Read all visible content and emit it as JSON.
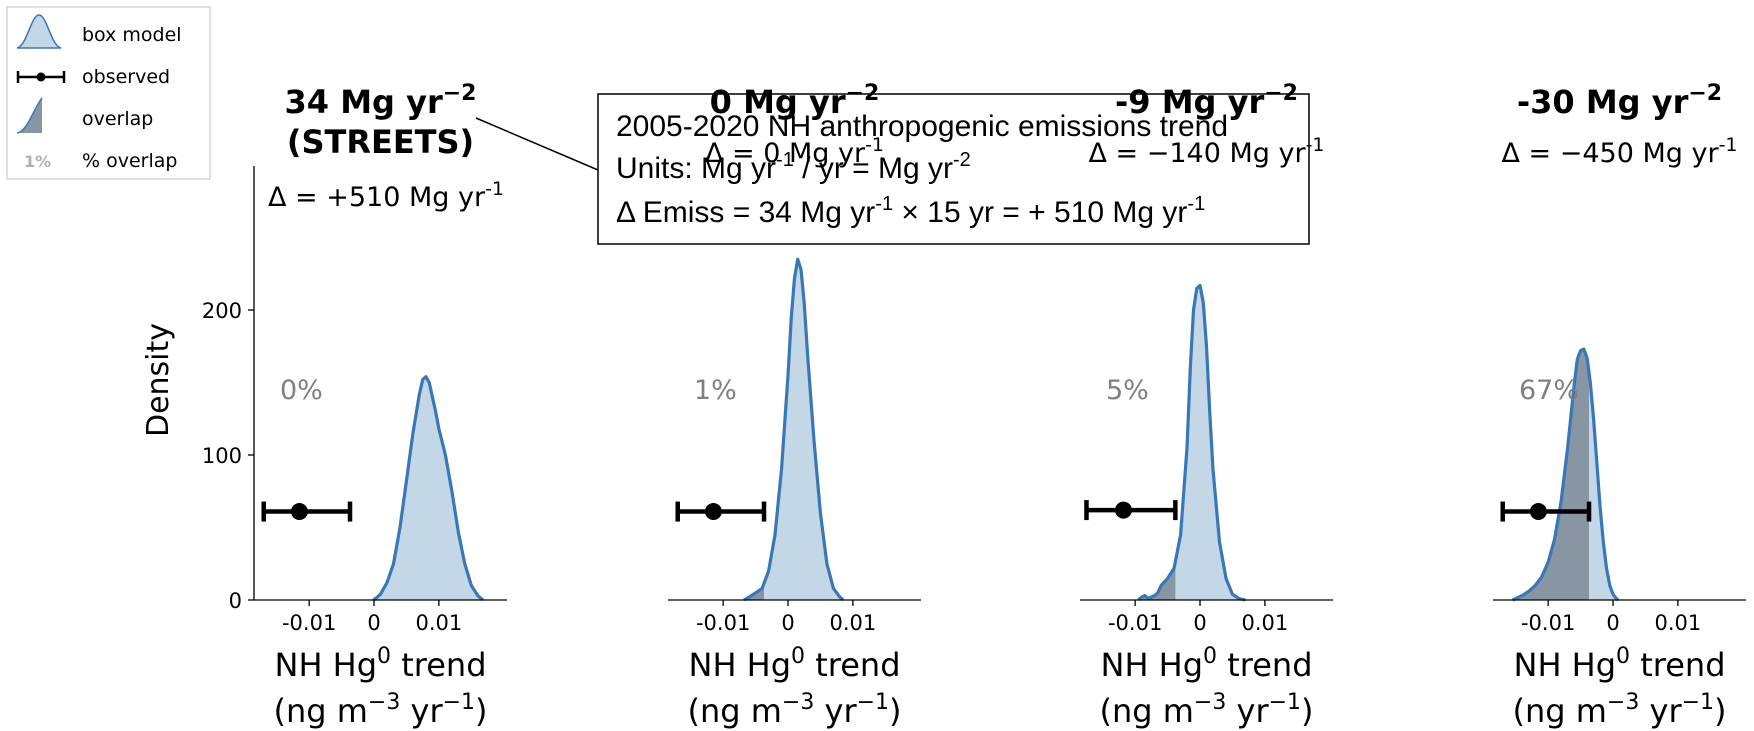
{
  "legend": {
    "items": [
      {
        "kind": "kde",
        "label": "box model"
      },
      {
        "kind": "errorbar",
        "label": "observed"
      },
      {
        "kind": "overlap",
        "label": "overlap"
      },
      {
        "kind": "pct",
        "sample": "1%",
        "label": "% overlap"
      }
    ]
  },
  "annotation": {
    "line1": "2005-2020 NH anthropogenic emissions trend",
    "line2_pre": "Units:  Mg yr",
    "line2_mid": " / yr = Mg yr",
    "line3_pre": "Δ Emiss =  34 Mg yr",
    "line3_mid": " × 15 yr = + 510 Mg yr",
    "sup_neg1": "-1",
    "sup_neg2": "-2"
  },
  "colors": {
    "kde_line": "#3a77b6",
    "kde_fill": "#c3d7e6",
    "overlap_fill": "#8896a3",
    "pct_text": "#808080",
    "observed": "#000000"
  },
  "chart_data": [
    {
      "type": "line",
      "title_value": "34 Mg yr",
      "title_sup": "−2",
      "title_extra": "(STREETS)",
      "delta": "Δ = +510 Mg yr",
      "delta_sup": "-1",
      "overlap_label": "0%",
      "xlabel": "NH Hg",
      "xlabel_sup": "0",
      "xlabel_tail": " trend",
      "xlabel_line2_pre": "(ng m",
      "xlabel_line2_sup1": "−3",
      "xlabel_line2_mid": " yr",
      "xlabel_line2_sup2": "−1",
      "xlabel_line2_post": ")",
      "ylabel": "Density",
      "xlim": [
        -0.0185,
        0.0205
      ],
      "ylim": [
        0,
        240
      ],
      "xticks": [
        -0.01,
        0,
        0.01
      ],
      "xticklabels": [
        "-0.01",
        "0",
        "0.01"
      ],
      "yticks": [
        0,
        100,
        200
      ],
      "yticklabels": [
        "0",
        "100",
        "200"
      ],
      "observed": {
        "mean": -0.0115,
        "low": -0.017,
        "high": -0.0037,
        "density": 61
      },
      "kde": {
        "x": [
          -0.0001,
          0.0005,
          0.001,
          0.002,
          0.003,
          0.004,
          0.005,
          0.006,
          0.007,
          0.0075,
          0.008,
          0.0085,
          0.009,
          0.0095,
          0.01,
          0.011,
          0.012,
          0.013,
          0.014,
          0.015,
          0.016,
          0.0168
        ],
        "y": [
          0,
          2,
          4,
          12,
          25,
          50,
          82,
          115,
          142,
          152,
          154,
          150,
          140,
          130,
          118,
          100,
          75,
          47,
          25,
          10,
          3,
          0
        ]
      },
      "overlap_x_max": -0.0037
    },
    {
      "type": "line",
      "title_value": "0 Mg yr",
      "title_sup": "−2",
      "title_extra": "",
      "delta": "Δ = 0 Mg yr",
      "delta_sup": "-1",
      "overlap_label": "1%",
      "xlabel": "NH Hg",
      "xlabel_sup": "0",
      "xlabel_tail": " trend",
      "xlabel_line2_pre": "(ng m",
      "xlabel_line2_sup1": "−3",
      "xlabel_line2_mid": " yr",
      "xlabel_line2_sup2": "−1",
      "xlabel_line2_post": ")",
      "xlim": [
        -0.0185,
        0.0205
      ],
      "ylim": [
        0,
        240
      ],
      "xticks": [
        -0.01,
        0,
        0.01
      ],
      "xticklabels": [
        "-0.01",
        "0",
        "0.01"
      ],
      "observed": {
        "mean": -0.0115,
        "low": -0.017,
        "high": -0.0037,
        "density": 61
      },
      "kde": {
        "x": [
          -0.0068,
          -0.006,
          -0.005,
          -0.004,
          -0.003,
          -0.002,
          -0.001,
          0,
          0.0005,
          0.001,
          0.0015,
          0.002,
          0.0025,
          0.003,
          0.004,
          0.005,
          0.006,
          0.007,
          0.008,
          0.0085
        ],
        "y": [
          0,
          2,
          5,
          8,
          20,
          45,
          90,
          155,
          195,
          222,
          235,
          228,
          205,
          170,
          110,
          60,
          25,
          8,
          2,
          0
        ]
      },
      "overlap_x_max": -0.0037
    },
    {
      "type": "line",
      "title_value": "-9 Mg yr",
      "title_sup": "−2",
      "title_extra": "",
      "delta": "Δ = −140 Mg yr",
      "delta_sup": "-1",
      "overlap_label": "5%",
      "xlabel": "NH Hg",
      "xlabel_sup": "0",
      "xlabel_tail": " trend",
      "xlabel_line2_pre": "(ng m",
      "xlabel_line2_sup1": "−3",
      "xlabel_line2_mid": " yr",
      "xlabel_line2_sup2": "−1",
      "xlabel_line2_post": ")",
      "xlim": [
        -0.0185,
        0.0205
      ],
      "ylim": [
        0,
        240
      ],
      "xticks": [
        -0.01,
        0,
        0.01
      ],
      "xticklabels": [
        "-0.01",
        "0",
        "0.01"
      ],
      "observed": {
        "mean": -0.0118,
        "low": -0.0175,
        "high": -0.0038,
        "density": 62
      },
      "kde": {
        "x": [
          -0.0095,
          -0.009,
          -0.0085,
          -0.008,
          -0.0075,
          -0.007,
          -0.0065,
          -0.006,
          -0.005,
          -0.004,
          -0.003,
          -0.002,
          -0.0015,
          -0.001,
          -0.0005,
          0,
          0.0005,
          0.001,
          0.0015,
          0.002,
          0.003,
          0.004,
          0.005,
          0.006,
          0.007
        ],
        "y": [
          0,
          2,
          3,
          1,
          2,
          3,
          5,
          10,
          15,
          22,
          45,
          105,
          160,
          200,
          215,
          217,
          205,
          175,
          130,
          90,
          40,
          15,
          4,
          1,
          0
        ]
      },
      "overlap_x_max": -0.0038
    },
    {
      "type": "line",
      "title_value": "-30 Mg yr",
      "title_sup": "−2",
      "title_extra": "",
      "delta": "Δ = −450 Mg yr",
      "delta_sup": "-1",
      "overlap_label": "67%",
      "xlabel": "NH Hg",
      "xlabel_sup": "0",
      "xlabel_tail": " trend",
      "xlabel_line2_pre": "(ng m",
      "xlabel_line2_sup1": "−3",
      "xlabel_line2_mid": " yr",
      "xlabel_line2_sup2": "−1",
      "xlabel_line2_post": ")",
      "xlim": [
        -0.0185,
        0.0205
      ],
      "ylim": [
        0,
        240
      ],
      "xticks": [
        -0.01,
        0,
        0.01
      ],
      "xticklabels": [
        "-0.01",
        "0",
        "0.01"
      ],
      "observed": {
        "mean": -0.0115,
        "low": -0.017,
        "high": -0.0037,
        "density": 61
      },
      "kde": {
        "x": [
          -0.0155,
          -0.014,
          -0.013,
          -0.012,
          -0.011,
          -0.01,
          -0.009,
          -0.008,
          -0.007,
          -0.006,
          -0.0055,
          -0.005,
          -0.0045,
          -0.004,
          -0.0035,
          -0.003,
          -0.0025,
          -0.002,
          -0.0015,
          -0.001,
          -0.0005,
          0,
          0.0005,
          0.0008
        ],
        "y": [
          0,
          3,
          6,
          10,
          16,
          26,
          42,
          68,
          105,
          148,
          166,
          172,
          173,
          167,
          150,
          125,
          95,
          65,
          40,
          22,
          10,
          4,
          1,
          0
        ]
      },
      "overlap_x_max": -0.0037
    }
  ]
}
